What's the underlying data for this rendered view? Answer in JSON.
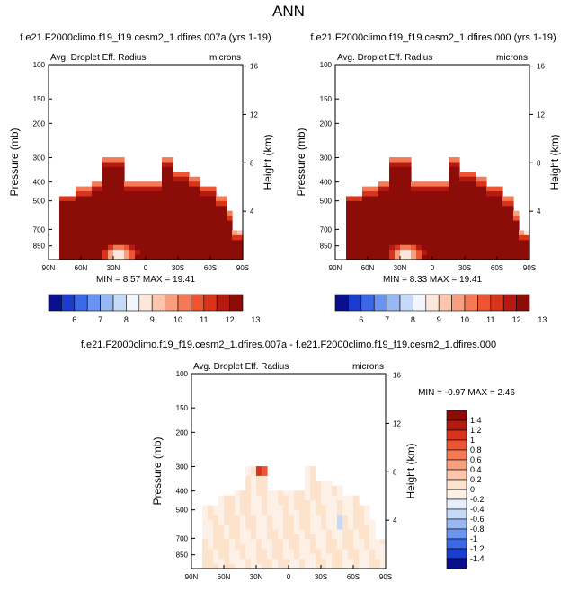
{
  "figure": {
    "title": "ANN"
  },
  "colors": {
    "seq": [
      "#08108c",
      "#1c3cd0",
      "#3a68e6",
      "#6a94f0",
      "#98b8f4",
      "#c6daf8",
      "#f2f6fc",
      "#fde6da",
      "#fcc6ac",
      "#f8a07e",
      "#f47a56",
      "#ec5432",
      "#d8341c",
      "#b41a10",
      "#8c0c08"
    ],
    "diff": [
      "#08108c",
      "#1c3cd0",
      "#3a68e6",
      "#6a94f0",
      "#98b8f4",
      "#c6daf8",
      "#e6f0fc",
      "#fdf0e6",
      "#fde2cc",
      "#fcc6ac",
      "#f8a07e",
      "#f47a56",
      "#ec5432",
      "#d8341c",
      "#b41a10",
      "#8c0c08"
    ]
  },
  "chart_data": [
    {
      "type": "heatmap",
      "case_title": "f.e21.F2000climo.f19_f19.cesm2_1.dfires.007a (yrs 1-19)",
      "variable": "Avg. Droplet Eff. Radius",
      "units": "microns",
      "ylabel": "Pressure (mb)",
      "ylabel_right": "Height (km)",
      "x_ticks": [
        "90N",
        "60N",
        "30N",
        "0",
        "30S",
        "60S",
        "90S"
      ],
      "y_ticks": [
        "100",
        "150",
        "200",
        "300",
        "400",
        "500",
        "700",
        "850"
      ],
      "height_ticks": [
        "16",
        "12",
        "8",
        "4"
      ],
      "x_range": [
        90,
        -90
      ],
      "y_range": [
        100,
        1000
      ],
      "stats": "MIN =  8.57  MAX =  19.41",
      "colorbar_labels": [
        "6",
        "7",
        "8",
        "9",
        "10",
        "11",
        "12",
        "13"
      ],
      "colorbar_levels": [
        5.5,
        6,
        6.5,
        7,
        7.5,
        8,
        8.5,
        9,
        9.5,
        10,
        10.5,
        11,
        11.5,
        12,
        12.5,
        13
      ],
      "field_summary": "Values exceed 13 microns over most cloudy region (dark red); lower values 9-12 near cloud edges at 300-500 mb and near 30N surface; no data above ~300 mb"
    },
    {
      "type": "heatmap",
      "case_title": "f.e21.F2000climo.f19_f19.cesm2_1.dfires.000 (yrs 1-19)",
      "variable": "Avg. Droplet Eff. Radius",
      "units": "microns",
      "ylabel": "Pressure (mb)",
      "ylabel_right": "Height (km)",
      "x_ticks": [
        "90N",
        "60N",
        "30N",
        "0",
        "30S",
        "60S",
        "90S"
      ],
      "y_ticks": [
        "100",
        "150",
        "200",
        "300",
        "400",
        "500",
        "700",
        "850"
      ],
      "height_ticks": [
        "16",
        "12",
        "8",
        "4"
      ],
      "x_range": [
        90,
        -90
      ],
      "y_range": [
        100,
        1000
      ],
      "stats": "MIN =  8.33  MAX =  19.41",
      "colorbar_labels": [
        "6",
        "7",
        "8",
        "9",
        "10",
        "11",
        "12",
        "13"
      ],
      "colorbar_levels": [
        5.5,
        6,
        6.5,
        7,
        7.5,
        8,
        8.5,
        9,
        9.5,
        10,
        10.5,
        11,
        11.5,
        12,
        12.5,
        13
      ],
      "field_summary": "Nearly identical to panel 1"
    },
    {
      "type": "heatmap",
      "case_title": "f.e21.F2000climo.f19_f19.cesm2_1.dfires.007a - f.e21.F2000climo.f19_f19.cesm2_1.dfires.000",
      "variable": "Avg. Droplet Eff. Radius",
      "units": "microns",
      "ylabel": "Pressure (mb)",
      "ylabel_right": "Height (km)",
      "x_ticks": [
        "90N",
        "60N",
        "30N",
        "0",
        "30S",
        "60S",
        "90S"
      ],
      "y_ticks": [
        "100",
        "150",
        "200",
        "300",
        "400",
        "500",
        "700",
        "850"
      ],
      "height_ticks": [
        "16",
        "12",
        "8",
        "4"
      ],
      "x_range": [
        90,
        -90
      ],
      "y_range": [
        100,
        1000
      ],
      "stats": "MIN = -0.97  MAX =  2.46",
      "colorbar_labels": [
        "1.4",
        "1.2",
        "1",
        "0.8",
        "0.6",
        "0.4",
        "0.2",
        "0",
        "-0.2",
        "-0.4",
        "-0.6",
        "-0.8",
        "-1",
        "-1.2",
        "-1.4"
      ],
      "colorbar_levels": [
        -1.4,
        -1.2,
        -1,
        -0.8,
        -0.6,
        -0.4,
        -0.2,
        0,
        0.2,
        0.4,
        0.6,
        0.8,
        1,
        1.2,
        1.4
      ],
      "field_summary": "Differences mostly small (-0.2 to +0.2), pale blue/peach patches; small positive maximum near 30N 300 mb"
    }
  ]
}
